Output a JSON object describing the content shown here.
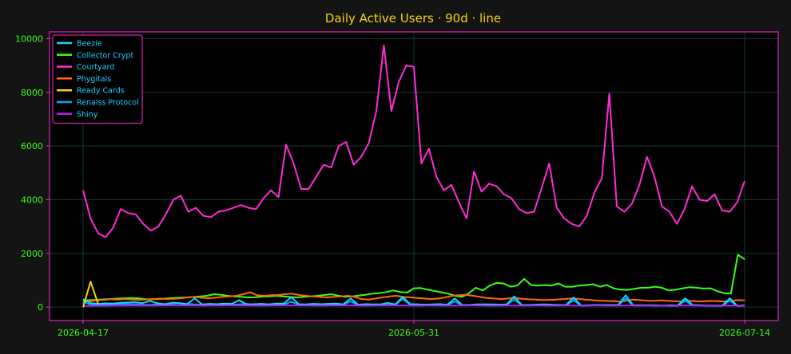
{
  "chart_data": {
    "type": "line",
    "title": "Daily Active Users · 90d · line",
    "x_tick_labels": [
      "2026-04-17",
      "2026-05-31",
      "2026-07-14"
    ],
    "x_range": [
      "2026-04-17",
      "2026-07-14"
    ],
    "ylim": [
      -500,
      10250
    ],
    "y_ticks": [
      0,
      2000,
      4000,
      6000,
      8000,
      10000
    ],
    "grid": true,
    "legend_position": "top-left",
    "colors": {
      "background": "#141414",
      "plot_background": "#000000",
      "frame": "#ff2bd6",
      "grid": "#153a3a",
      "tick_text": "#39ff14",
      "title_text": "#f5d30a",
      "legend_text": "#19d3ff"
    },
    "series": [
      {
        "name": "Beezie",
        "color": "#19d3ff",
        "values": [
          300,
          150,
          120,
          140,
          130,
          160,
          170,
          180,
          150,
          230,
          140,
          110,
          160,
          150,
          110,
          330,
          100,
          120,
          110,
          130,
          120,
          260,
          90,
          110,
          120,
          100,
          130,
          130,
          370,
          110,
          100,
          120,
          110,
          120,
          130,
          100,
          320,
          90,
          110,
          100,
          100,
          160,
          100,
          380,
          110,
          100,
          90,
          100,
          110,
          90,
          320,
          80,
          80,
          100,
          100,
          100,
          90,
          100,
          400,
          80,
          80,
          90,
          100,
          90,
          80,
          80,
          360,
          60,
          70,
          80,
          80,
          80,
          80,
          440,
          70,
          70,
          70,
          70,
          60,
          70,
          60,
          330,
          80,
          70,
          60,
          60,
          60,
          330,
          50,
          70
        ]
      },
      {
        "name": "Collector Crypt",
        "color": "#39ff14",
        "values": [
          250,
          260,
          270,
          290,
          300,
          320,
          330,
          340,
          330,
          300,
          290,
          300,
          320,
          340,
          350,
          360,
          380,
          400,
          420,
          480,
          460,
          420,
          400,
          380,
          360,
          370,
          390,
          400,
          420,
          400,
          380,
          360,
          380,
          400,
          420,
          450,
          480,
          430,
          380,
          400,
          430,
          460,
          500,
          520,
          560,
          620,
          560,
          540,
          700,
          710,
          650,
          600,
          550,
          500,
          420,
          380,
          520,
          720,
          620,
          800,
          900,
          880,
          760,
          800,
          1050,
          820,
          800,
          820,
          800,
          880,
          760,
          760,
          800,
          820,
          850,
          760,
          820,
          700,
          650,
          640,
          680,
          720,
          720,
          760,
          720,
          620,
          650,
          700,
          740,
          720,
          690,
          700,
          600,
          520,
          500,
          1950,
          1780
        ]
      },
      {
        "name": "Courtyard",
        "color": "#ff2bd6",
        "values": [
          4350,
          3300,
          2750,
          2600,
          2950,
          3650,
          3500,
          3450,
          3100,
          2850,
          3000,
          3450,
          4000,
          4150,
          3550,
          3700,
          3400,
          3350,
          3550,
          3600,
          3700,
          3800,
          3700,
          3650,
          4050,
          4350,
          4100,
          6050,
          5350,
          4400,
          4400,
          4850,
          5300,
          5200,
          6000,
          6150,
          5300,
          5600,
          6100,
          7300,
          9750,
          7300,
          8400,
          9000,
          8950,
          5350,
          5900,
          4850,
          4350,
          4550,
          3900,
          3300,
          5050,
          4300,
          4600,
          4500,
          4200,
          4050,
          3650,
          3500,
          3550,
          4450,
          5350,
          3700,
          3300,
          3100,
          3000,
          3400,
          4250,
          4800,
          7950,
          3750,
          3550,
          3850,
          4550,
          5600,
          4850,
          3750,
          3550,
          3100,
          3650,
          4500,
          4000,
          3950,
          4200,
          3600,
          3550,
          3900,
          4700
        ]
      },
      {
        "name": "Phygitals",
        "color": "#ff6a13",
        "values": [
          200,
          220,
          250,
          270,
          290,
          280,
          300,
          280,
          270,
          280,
          300,
          320,
          300,
          310,
          330,
          360,
          380,
          350,
          330,
          350,
          380,
          400,
          420,
          480,
          550,
          440,
          420,
          440,
          450,
          480,
          500,
          450,
          420,
          400,
          380,
          360,
          380,
          400,
          420,
          380,
          300,
          280,
          320,
          360,
          400,
          420,
          380,
          360,
          340,
          320,
          300,
          320,
          360,
          420,
          440,
          460,
          420,
          380,
          340,
          320,
          300,
          320,
          340,
          310,
          290,
          280,
          260,
          270,
          280,
          300,
          320,
          310,
          280,
          260,
          240,
          230,
          220,
          210,
          230,
          280,
          260,
          240,
          230,
          250,
          230,
          220,
          210,
          230,
          220,
          210,
          230,
          220,
          210,
          230,
          260,
          250
        ]
      },
      {
        "name": "Ready Cards",
        "color": "#f5d30a",
        "values": [
          0,
          950,
          120
        ]
      },
      {
        "name": "Renaiss Protocol",
        "color": "#00a6ff",
        "values": [
          200,
          90,
          80,
          90,
          100,
          120,
          110,
          100,
          90,
          80,
          110,
          100,
          90,
          80,
          120,
          100,
          80,
          90,
          100,
          80,
          90,
          100,
          120,
          90,
          80,
          100,
          110,
          90,
          200,
          80,
          70,
          80,
          90,
          100,
          80,
          90,
          210,
          70,
          80,
          90,
          80,
          90,
          80,
          310,
          90,
          80,
          70,
          80,
          90,
          70,
          210,
          70,
          80,
          90,
          80,
          80,
          70,
          90,
          280,
          70,
          60,
          70,
          80,
          70,
          70,
          60,
          260,
          50,
          60,
          70,
          60,
          60,
          70,
          320,
          60,
          60,
          60,
          50,
          60,
          50,
          50,
          240,
          60,
          60,
          50,
          50,
          50,
          240,
          40,
          50
        ]
      },
      {
        "name": "Shiny",
        "color": "#b41ee6",
        "values": [
          40,
          45,
          50,
          50,
          55,
          55,
          60,
          60,
          55,
          55,
          60,
          60,
          65,
          65,
          60,
          60,
          55,
          60,
          60,
          65,
          65,
          60,
          60,
          55,
          55,
          60,
          60,
          65,
          65,
          60,
          60,
          55,
          55,
          60,
          60,
          65,
          60,
          55,
          55,
          60,
          60,
          65,
          60,
          60,
          55,
          55,
          60,
          60,
          55,
          55,
          60,
          60,
          65,
          60,
          55,
          55,
          60,
          60,
          55,
          55,
          60,
          60,
          55,
          55,
          60,
          60,
          55,
          55,
          60,
          60,
          55,
          55,
          60,
          60,
          55,
          55,
          60,
          60,
          55,
          55,
          60,
          60,
          55,
          55,
          60,
          60,
          55,
          55,
          60
        ]
      }
    ]
  }
}
